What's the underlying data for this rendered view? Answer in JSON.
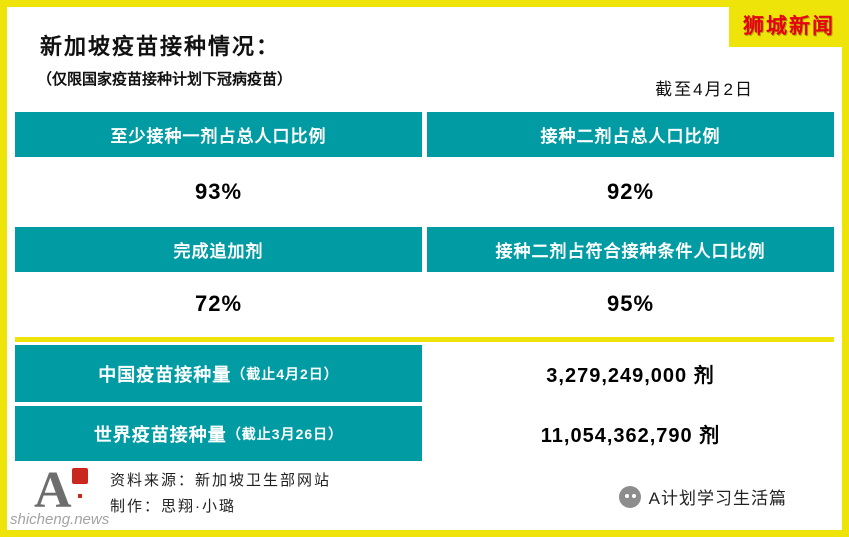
{
  "page": {
    "title": "新加坡疫苗接种情况：",
    "subtitle": "（仅限国家疫苗接种计划下冠病疫苗）",
    "as_of": "截至4月2日",
    "brand": "狮城新闻"
  },
  "colors": {
    "teal": "#009BA3",
    "yellow": "#EFE40A",
    "brand_red": "#E60012"
  },
  "table": {
    "stats": [
      {
        "header_left": "至少接种一剂占总人口比例",
        "header_right": "接种二剂占总人口比例",
        "value_left": "93%",
        "value_right": "92%"
      },
      {
        "header_left": "完成追加剂",
        "header_right": "接种二剂占符合接种条件人口比例",
        "value_left": "72%",
        "value_right": "95%"
      }
    ],
    "totals": [
      {
        "label": "中国疫苗接种量",
        "note": "（截止4月2日）",
        "value": "3,279,249,000 剂"
      },
      {
        "label": "世界疫苗接种量",
        "note": "（截止3月26日）",
        "value": "11,054,362,790 剂"
      }
    ]
  },
  "footer": {
    "logo_letter": "A",
    "source": "资料来源：新加坡卫生部网站",
    "maker": "制作：思翔·小璐",
    "watermark": "shicheng.news",
    "wechat_account": "A计划学习生活篇"
  },
  "chart_data": {
    "type": "table",
    "title": "新加坡疫苗接种情况",
    "subtitle": "仅限国家疫苗接种计划下冠病疫苗",
    "as_of": "截至4月2日",
    "rows": [
      {
        "metric": "至少接种一剂占总人口比例",
        "value": "93%"
      },
      {
        "metric": "接种二剂占总人口比例",
        "value": "92%"
      },
      {
        "metric": "完成追加剂",
        "value": "72%"
      },
      {
        "metric": "接种二剂占符合接种条件人口比例",
        "value": "95%"
      },
      {
        "metric": "中国疫苗接种量（截止4月2日）",
        "value": "3,279,249,000 剂"
      },
      {
        "metric": "世界疫苗接种量（截止3月26日）",
        "value": "11,054,362,790 剂"
      }
    ]
  }
}
